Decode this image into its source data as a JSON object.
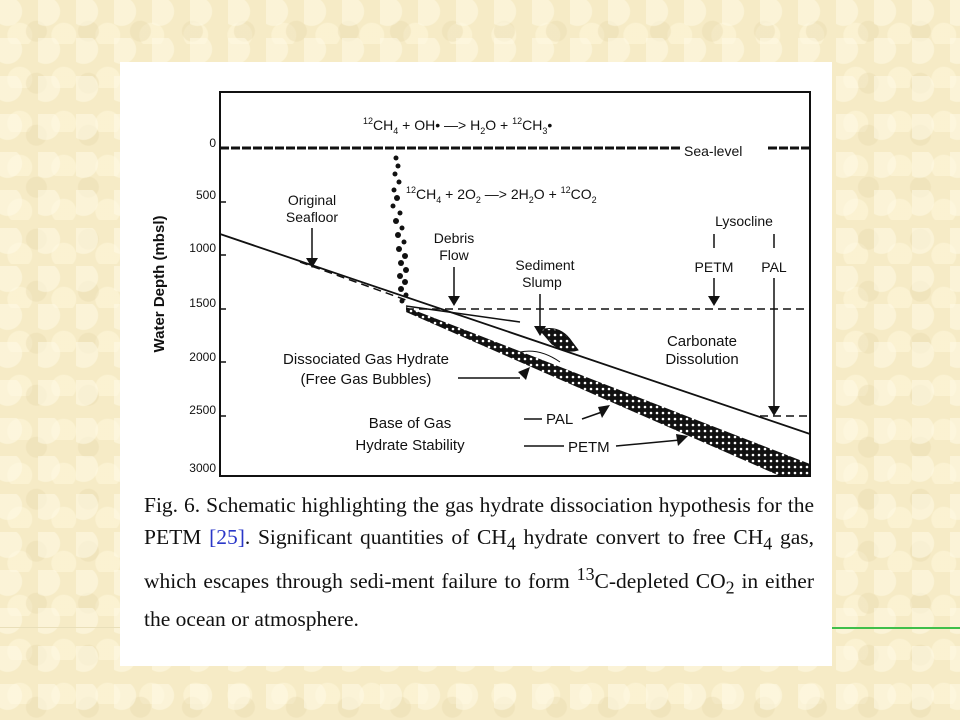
{
  "colors": {
    "background": "#f6ebc6",
    "panel": "#ffffff",
    "ink": "#111111",
    "citation": "#2a37c8",
    "accent_line": "#3fbf4a"
  },
  "figure": {
    "y_axis_label": "Water Depth (mbsl)",
    "depth_ticks": [
      "0",
      "500",
      "1000",
      "1500",
      "2000",
      "2500",
      "3000"
    ],
    "reaction_top": {
      "a": "12",
      "b": "CH",
      "c": "4",
      "d": " + OH• —> H",
      "e": "2",
      "f": "O + ",
      "g": "12",
      "h": "CH",
      "i": "3",
      "j": "•"
    },
    "reaction_mid": {
      "a": "12",
      "b": "CH",
      "c": "4",
      "d": " + 2O",
      "e": "2",
      "f": " —> 2H",
      "g": "2",
      "h": "O + ",
      "i": "12",
      "j": "CO",
      "k": "2"
    },
    "sea_level": "Sea-level",
    "original_seafloor": [
      "Original",
      "Seafloor"
    ],
    "debris_flow": [
      "Debris",
      "Flow"
    ],
    "sediment_slump": [
      "Sediment",
      "Slump"
    ],
    "lysocline": "Lysocline",
    "petm_right": "PETM",
    "pal_right": "PAL",
    "carbonate_dissolution": [
      "Carbonate",
      "Dissolution"
    ],
    "dissociated": [
      "Dissociated Gas Hydrate",
      "(Free Gas Bubbles)"
    ],
    "base_of_gas": [
      "Base of Gas",
      "Hydrate Stability"
    ],
    "pal_lower": "PAL",
    "petm_lower": "PETM"
  },
  "caption": {
    "p1": "Fig. 6. Schematic highlighting the gas hydrate dissociation hypothesis for the PETM ",
    "cite": "[25]",
    "p2": ". Significant quantities of CH",
    "sub1": "4",
    "p3": " hydrate convert to free CH",
    "sub2": "4",
    "p4": " gas, which escapes through sedi-ment failure to form ",
    "sup": "13",
    "p5": "C-depleted CO",
    "sub3": "2",
    "p6": " in either the ocean or atmosphere."
  }
}
